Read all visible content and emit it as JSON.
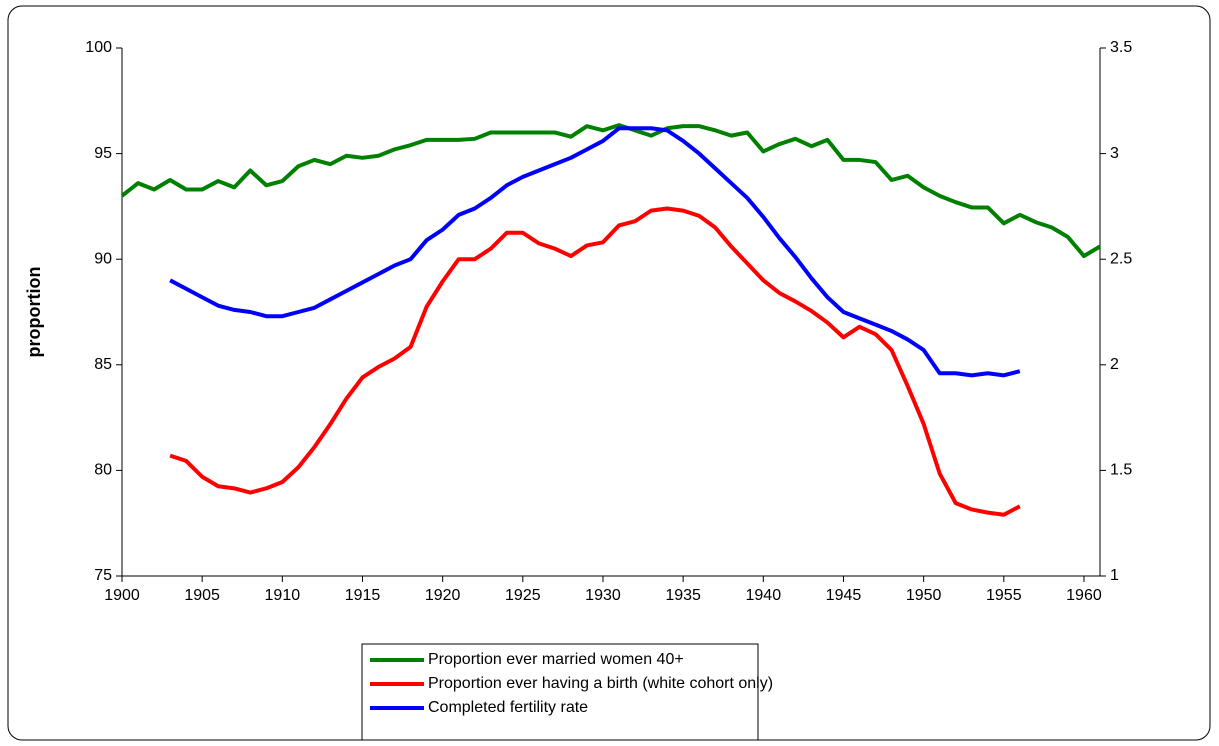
{
  "chart_data": {
    "type": "line",
    "y_label": "proportion",
    "xlim": [
      1900,
      1961
    ],
    "xticks": [
      1900,
      1905,
      1910,
      1915,
      1920,
      1925,
      1930,
      1935,
      1940,
      1945,
      1950,
      1955,
      1960
    ],
    "ylim": [
      75,
      100
    ],
    "yticks": [
      75,
      80,
      85,
      90,
      95,
      100
    ],
    "y2lim": [
      1,
      3.5
    ],
    "y2ticks": [
      1,
      1.5,
      2,
      2.5,
      3,
      3.5
    ],
    "grid": false,
    "legend": "bottom",
    "series": [
      {
        "name": "Proportion ever married women 40+",
        "color": "#008000",
        "x": [
          1900,
          1901,
          1902,
          1903,
          1904,
          1905,
          1906,
          1907,
          1908,
          1909,
          1910,
          1911,
          1912,
          1913,
          1914,
          1915,
          1916,
          1917,
          1918,
          1919,
          1920,
          1921,
          1922,
          1923,
          1924,
          1925,
          1926,
          1927,
          1928,
          1929,
          1930,
          1931,
          1932,
          1933,
          1934,
          1935,
          1936,
          1937,
          1938,
          1939,
          1940,
          1941,
          1942,
          1943,
          1944,
          1945,
          1946,
          1947,
          1948,
          1949,
          1950,
          1951,
          1952,
          1953,
          1954,
          1955,
          1956,
          1957,
          1958,
          1959,
          1960,
          1961
        ],
        "values": [
          93.0,
          93.6,
          93.3,
          93.75,
          93.3,
          93.3,
          93.7,
          93.4,
          94.2,
          93.5,
          93.7,
          94.4,
          94.7,
          94.5,
          94.9,
          94.8,
          94.9,
          95.2,
          95.4,
          95.65,
          95.65,
          95.65,
          95.7,
          96.0,
          96.0,
          96.0,
          96.0,
          96.0,
          95.8,
          96.3,
          96.1,
          96.35,
          96.1,
          95.85,
          96.2,
          96.3,
          96.3,
          96.1,
          95.85,
          96.0,
          95.1,
          95.45,
          95.7,
          95.35,
          95.65,
          94.7,
          94.7,
          94.6,
          93.75,
          93.95,
          93.4,
          93.0,
          92.7,
          92.45,
          92.45,
          91.7,
          92.1,
          91.75,
          91.5,
          91.05,
          90.15,
          90.6
        ]
      },
      {
        "name": "Proportion ever having a birth (white cohort only)",
        "color": "#ff0000",
        "x": [
          1903,
          1904,
          1905,
          1906,
          1907,
          1908,
          1909,
          1910,
          1911,
          1912,
          1913,
          1914,
          1915,
          1916,
          1917,
          1918,
          1919,
          1920,
          1921,
          1922,
          1923,
          1924,
          1925,
          1926,
          1927,
          1928,
          1929,
          1930,
          1931,
          1932,
          1933,
          1934,
          1935,
          1936,
          1937,
          1938,
          1939,
          1940,
          1941,
          1942,
          1943,
          1944,
          1945,
          1946,
          1947,
          1948,
          1949,
          1950,
          1951,
          1952,
          1953,
          1954,
          1955,
          1956
        ],
        "values": [
          80.7,
          80.45,
          79.7,
          79.25,
          79.15,
          78.95,
          79.15,
          79.45,
          80.15,
          81.1,
          82.2,
          83.4,
          84.4,
          84.9,
          85.3,
          85.85,
          87.75,
          88.95,
          90.0,
          90.0,
          90.5,
          91.25,
          91.25,
          90.75,
          90.5,
          90.15,
          90.65,
          90.8,
          91.6,
          91.8,
          92.3,
          92.4,
          92.3,
          92.05,
          91.5,
          90.6,
          89.8,
          89.0,
          88.4,
          88.0,
          87.55,
          87.0,
          86.3,
          86.8,
          86.45,
          85.7,
          84.0,
          82.2,
          79.85,
          78.45,
          78.15,
          78.0,
          77.9,
          78.3
        ]
      },
      {
        "name": "Completed fertility rate",
        "color": "#0000ff",
        "axis": "y2",
        "x": [
          1903,
          1904,
          1905,
          1906,
          1907,
          1908,
          1909,
          1910,
          1911,
          1912,
          1913,
          1914,
          1915,
          1916,
          1917,
          1918,
          1919,
          1920,
          1921,
          1922,
          1923,
          1924,
          1925,
          1926,
          1927,
          1928,
          1929,
          1930,
          1931,
          1932,
          1933,
          1934,
          1935,
          1936,
          1937,
          1938,
          1939,
          1940,
          1941,
          1942,
          1943,
          1944,
          1945,
          1946,
          1947,
          1948,
          1949,
          1950,
          1951,
          1952,
          1953,
          1954,
          1955,
          1956
        ],
        "values": [
          2.4,
          2.36,
          2.32,
          2.28,
          2.26,
          2.25,
          2.23,
          2.23,
          2.25,
          2.27,
          2.31,
          2.35,
          2.39,
          2.43,
          2.47,
          2.5,
          2.59,
          2.64,
          2.71,
          2.74,
          2.79,
          2.85,
          2.89,
          2.92,
          2.95,
          2.98,
          3.02,
          3.06,
          3.12,
          3.12,
          3.12,
          3.11,
          3.06,
          3.0,
          2.93,
          2.86,
          2.79,
          2.7,
          2.6,
          2.51,
          2.41,
          2.32,
          2.25,
          2.22,
          2.19,
          2.16,
          2.12,
          2.07,
          1.96,
          1.96,
          1.95,
          1.96,
          1.95,
          1.97
        ]
      }
    ]
  }
}
